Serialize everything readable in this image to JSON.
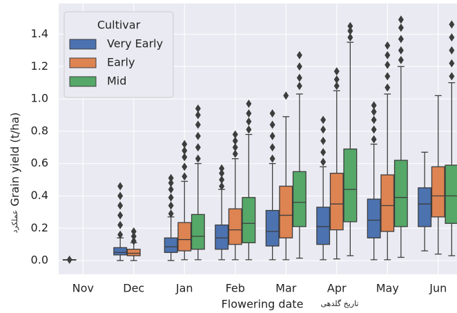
{
  "chart_data": {
    "type": "box",
    "y_label": "Grain yield (t/ha)",
    "y_label_fa": "عملکرد",
    "x_label": "Flowering date",
    "x_label_fa": "تاریخ گلدهی",
    "legend_title": "Cultivar",
    "legend_loc": "upper left",
    "grid": true,
    "categories": [
      "Nov",
      "Dec",
      "Jan",
      "Feb",
      "Mar",
      "Apr",
      "May",
      "Jun"
    ],
    "ylim": [
      -0.085,
      1.59
    ],
    "yticks": [
      {
        "value": 0,
        "label": "0.0"
      },
      0.2,
      0.4,
      0.6,
      0.8,
      {
        "value": 1,
        "label": "1.0"
      },
      1.2,
      1.4
    ],
    "series": [
      {
        "name": "Very Early",
        "color": "#4c72b0",
        "boxes": [
          {
            "q1": 0.005,
            "median": 0.005,
            "q3": 0.005,
            "whislo": 0.005,
            "whishi": 0.005,
            "outliers": [
              0.005
            ]
          },
          {
            "q1": 0.035,
            "median": 0.05,
            "q3": 0.08,
            "whislo": 0,
            "whishi": 0.14,
            "outliers": [
              0.16,
              0.22,
              0.28,
              0.34,
              0.4,
              0.46
            ]
          },
          {
            "q1": 0.05,
            "median": 0.085,
            "q3": 0.14,
            "whislo": 0,
            "whishi": 0.27,
            "outliers": [
              0.29,
              0.34,
              0.39,
              0.44,
              0.48,
              0.51
            ]
          },
          {
            "q1": 0.07,
            "median": 0.14,
            "q3": 0.22,
            "whislo": 0.005,
            "whishi": 0.44,
            "outliers": [
              0.46,
              0.5,
              0.54,
              0.57
            ]
          },
          {
            "q1": 0.09,
            "median": 0.18,
            "q3": 0.31,
            "whislo": 0.005,
            "whishi": 0.6,
            "outliers": [
              0.63,
              0.7,
              0.77,
              0.84,
              0.91
            ]
          },
          {
            "q1": 0.1,
            "median": 0.21,
            "q3": 0.33,
            "whislo": 0.005,
            "whishi": 0.58,
            "outliers": [
              0.61,
              0.67,
              0.74,
              0.81,
              0.87
            ]
          },
          {
            "q1": 0.14,
            "median": 0.25,
            "q3": 0.38,
            "whislo": 0.005,
            "whishi": 0.72,
            "outliers": [
              0.75,
              0.81,
              0.87,
              0.92,
              0.96
            ]
          },
          {
            "q1": 0.21,
            "median": 0.35,
            "q3": 0.45,
            "whislo": 0.06,
            "whishi": 0.67,
            "outliers": []
          }
        ]
      },
      {
        "name": "Early",
        "color": "#dd8452",
        "boxes": [
          null,
          {
            "q1": 0.03,
            "median": 0.045,
            "q3": 0.07,
            "whislo": 0,
            "whishi": 0.11,
            "outliers": [
              0.12,
              0.15,
              0.18
            ]
          },
          {
            "q1": 0.06,
            "median": 0.13,
            "q3": 0.235,
            "whislo": 0.005,
            "whishi": 0.49,
            "outliers": [
              0.52,
              0.58,
              0.64,
              0.68,
              0.72
            ]
          },
          {
            "q1": 0.1,
            "median": 0.19,
            "q3": 0.32,
            "whislo": 0.005,
            "whishi": 0.63,
            "outliers": [
              0.66,
              0.7,
              0.74,
              0.78
            ]
          },
          {
            "q1": 0.14,
            "median": 0.28,
            "q3": 0.46,
            "whislo": 0.005,
            "whishi": 0.89,
            "outliers": [
              1.02
            ]
          },
          {
            "q1": 0.19,
            "median": 0.35,
            "q3": 0.54,
            "whislo": 0.01,
            "whishi": 1.05,
            "outliers": [
              1.08,
              1.12,
              1.17
            ]
          },
          {
            "q1": 0.18,
            "median": 0.34,
            "q3": 0.53,
            "whislo": 0.005,
            "whishi": 1.03,
            "outliers": [
              1.07,
              1.14,
              1.21,
              1.27,
              1.33
            ]
          },
          {
            "q1": 0.27,
            "median": 0.4,
            "q3": 0.58,
            "whislo": 0.04,
            "whishi": 1.02,
            "outliers": []
          }
        ]
      },
      {
        "name": "Mid",
        "color": "#55a868",
        "boxes": [
          null,
          null,
          {
            "q1": 0.07,
            "median": 0.15,
            "q3": 0.285,
            "whislo": 0.005,
            "whishi": 0.6,
            "outliers": [
              0.63,
              0.7,
              0.77,
              0.84,
              0.9,
              0.94
            ]
          },
          {
            "q1": 0.11,
            "median": 0.23,
            "q3": 0.39,
            "whislo": 0.005,
            "whishi": 0.78,
            "outliers": [
              0.81,
              0.86,
              0.91,
              0.97
            ]
          },
          {
            "q1": 0.21,
            "median": 0.36,
            "q3": 0.55,
            "whislo": 0.015,
            "whishi": 1.03,
            "outliers": [
              1.08,
              1.13,
              1.2,
              1.27
            ]
          },
          {
            "q1": 0.24,
            "median": 0.44,
            "q3": 0.69,
            "whislo": 0.03,
            "whishi": 1.35,
            "outliers": [
              1.38,
              1.42,
              1.45
            ]
          },
          {
            "q1": 0.21,
            "median": 0.39,
            "q3": 0.62,
            "whislo": 0.02,
            "whishi": 1.2,
            "outliers": [
              1.24,
              1.3,
              1.37,
              1.44,
              1.49
            ]
          },
          {
            "q1": 0.23,
            "median": 0.4,
            "q3": 0.59,
            "whislo": 0.03,
            "whishi": 1.1,
            "outliers": [
              1.14,
              1.22,
              1.3,
              1.38,
              1.46
            ]
          }
        ]
      }
    ]
  }
}
